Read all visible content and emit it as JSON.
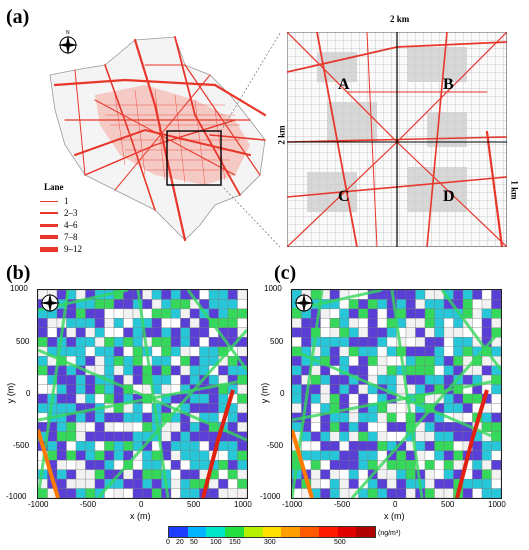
{
  "panels": {
    "a": "(a)",
    "b": "(b)",
    "c": "(c)"
  },
  "legend": {
    "title": "Lane",
    "items": [
      "1",
      "2–3",
      "4–6",
      "7–8",
      "9–12"
    ]
  },
  "zoom": {
    "quadrants": [
      "A",
      "B",
      "C",
      "D"
    ],
    "top_scale": "2 km",
    "left_scale": "2 km",
    "right_scale": "1 km"
  },
  "axes": {
    "x_title": "x (m)",
    "y_title": "y (m)",
    "x_ticks": [
      "-1000",
      "-500",
      "0",
      "500",
      "1000"
    ],
    "y_ticks": [
      "1000",
      "500",
      "0",
      "-500",
      "-1000"
    ]
  },
  "colorbar": {
    "ticks": [
      "0",
      "20",
      "50",
      "100",
      "150",
      "300",
      "500"
    ],
    "unit": "(ng/m³)",
    "colors": [
      "#1e3cff",
      "#00b4ff",
      "#00e6c8",
      "#22e040",
      "#b4f000",
      "#ffe000",
      "#ffa000",
      "#ff5a00",
      "#ff1a00",
      "#e00000",
      "#b00000"
    ]
  },
  "colors": {
    "road": "#e8362a",
    "low": "#5a3fd6",
    "mid": "#27c6d8",
    "green": "#35d85a"
  }
}
